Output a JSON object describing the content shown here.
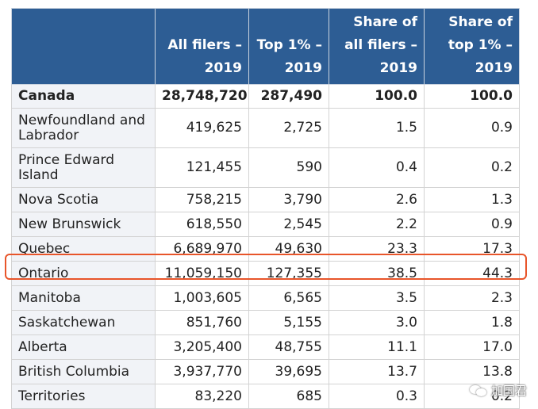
{
  "table": {
    "headers": [
      "",
      "All filers – 2019",
      "Top 1% – 2019",
      "Share of all filers – 2019",
      "Share of top 1% – 2019"
    ],
    "rows": [
      {
        "name": "Canada",
        "all": "28,748,720",
        "top": "287,490",
        "share_all": "100.0",
        "share_top": "100.0"
      },
      {
        "name": "Newfoundland and Labrador",
        "all": "419,625",
        "top": "2,725",
        "share_all": "1.5",
        "share_top": "0.9"
      },
      {
        "name": "Prince Edward Island",
        "all": "121,455",
        "top": "590",
        "share_all": "0.4",
        "share_top": "0.2"
      },
      {
        "name": "Nova Scotia",
        "all": "758,215",
        "top": "3,790",
        "share_all": "2.6",
        "share_top": "1.3"
      },
      {
        "name": "New Brunswick",
        "all": "618,550",
        "top": "2,545",
        "share_all": "2.2",
        "share_top": "0.9"
      },
      {
        "name": "Quebec",
        "all": "6,689,970",
        "top": "49,630",
        "share_all": "23.3",
        "share_top": "17.3"
      },
      {
        "name": "Ontario",
        "all": "11,059,150",
        "top": "127,355",
        "share_all": "38.5",
        "share_top": "44.3"
      },
      {
        "name": "Manitoba",
        "all": "1,003,605",
        "top": "6,565",
        "share_all": "3.5",
        "share_top": "2.3"
      },
      {
        "name": "Saskatchewan",
        "all": "851,760",
        "top": "5,155",
        "share_all": "3.0",
        "share_top": "1.8"
      },
      {
        "name": "Alberta",
        "all": "3,205,400",
        "top": "48,755",
        "share_all": "11.1",
        "share_top": "17.0"
      },
      {
        "name": "British Columbia",
        "all": "3,937,770",
        "top": "39,695",
        "share_all": "13.7",
        "share_top": "13.8"
      },
      {
        "name": "Territories",
        "all": "83,220",
        "top": "685",
        "share_all": "0.3",
        "share_top": "0.2"
      }
    ]
  },
  "watermark": {
    "text": "加国君",
    "icon": "wechat-icon"
  },
  "colors": {
    "header_bg": "#2d5d94",
    "highlight": "#e8552a",
    "name_bg": "#f1f3f7"
  }
}
